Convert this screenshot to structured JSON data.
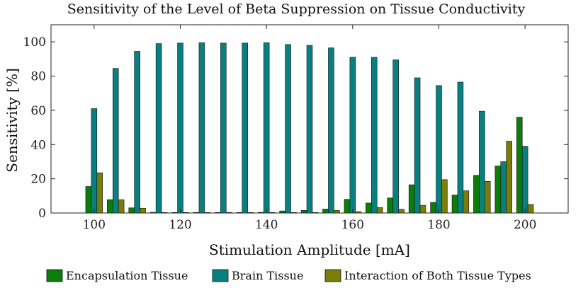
{
  "chart_data": {
    "type": "bar",
    "title": "Sensitivity of the Level of Beta Suppression on Tissue Conductivity",
    "xlabel": "Stimulation Amplitude [mA]",
    "ylabel": "Sensitivity [%]",
    "xlim": [
      90,
      210
    ],
    "ylim": [
      0,
      110
    ],
    "xticks": [
      100,
      120,
      140,
      160,
      180,
      200
    ],
    "yticks": [
      0,
      20,
      40,
      60,
      80,
      100
    ],
    "grid": false,
    "legend_position": "bottom",
    "x": [
      100,
      105,
      110,
      115,
      120,
      125,
      130,
      135,
      140,
      145,
      150,
      155,
      160,
      165,
      170,
      175,
      180,
      185,
      190,
      195,
      200
    ],
    "series": [
      {
        "name": "Encapsulation Tissue",
        "color": "#0a7d0a",
        "values": [
          15.5,
          7.8,
          3.0,
          0.4,
          0.3,
          0.3,
          0.3,
          0.3,
          0.4,
          1.2,
          1.5,
          2.3,
          8.0,
          5.8,
          8.8,
          16.5,
          6.2,
          10.5,
          22.0,
          27.5,
          56.0
        ]
      },
      {
        "name": "Brain Tissue",
        "color": "#0a7f7f",
        "values": [
          61.0,
          84.5,
          94.5,
          99.0,
          99.3,
          99.5,
          99.3,
          99.3,
          99.5,
          98.5,
          98.0,
          96.5,
          91.0,
          91.0,
          89.5,
          79.0,
          74.5,
          76.5,
          59.5,
          30.0,
          39.0
        ]
      },
      {
        "name": "Interaction of Both Tissue Types",
        "color": "#7a7d08",
        "values": [
          23.5,
          7.8,
          2.8,
          0.3,
          0.3,
          0.3,
          0.3,
          0.3,
          0.3,
          0.3,
          0.3,
          1.5,
          0.8,
          3.2,
          2.2,
          4.5,
          19.5,
          13.0,
          18.5,
          42.0,
          5.0
        ]
      }
    ]
  }
}
